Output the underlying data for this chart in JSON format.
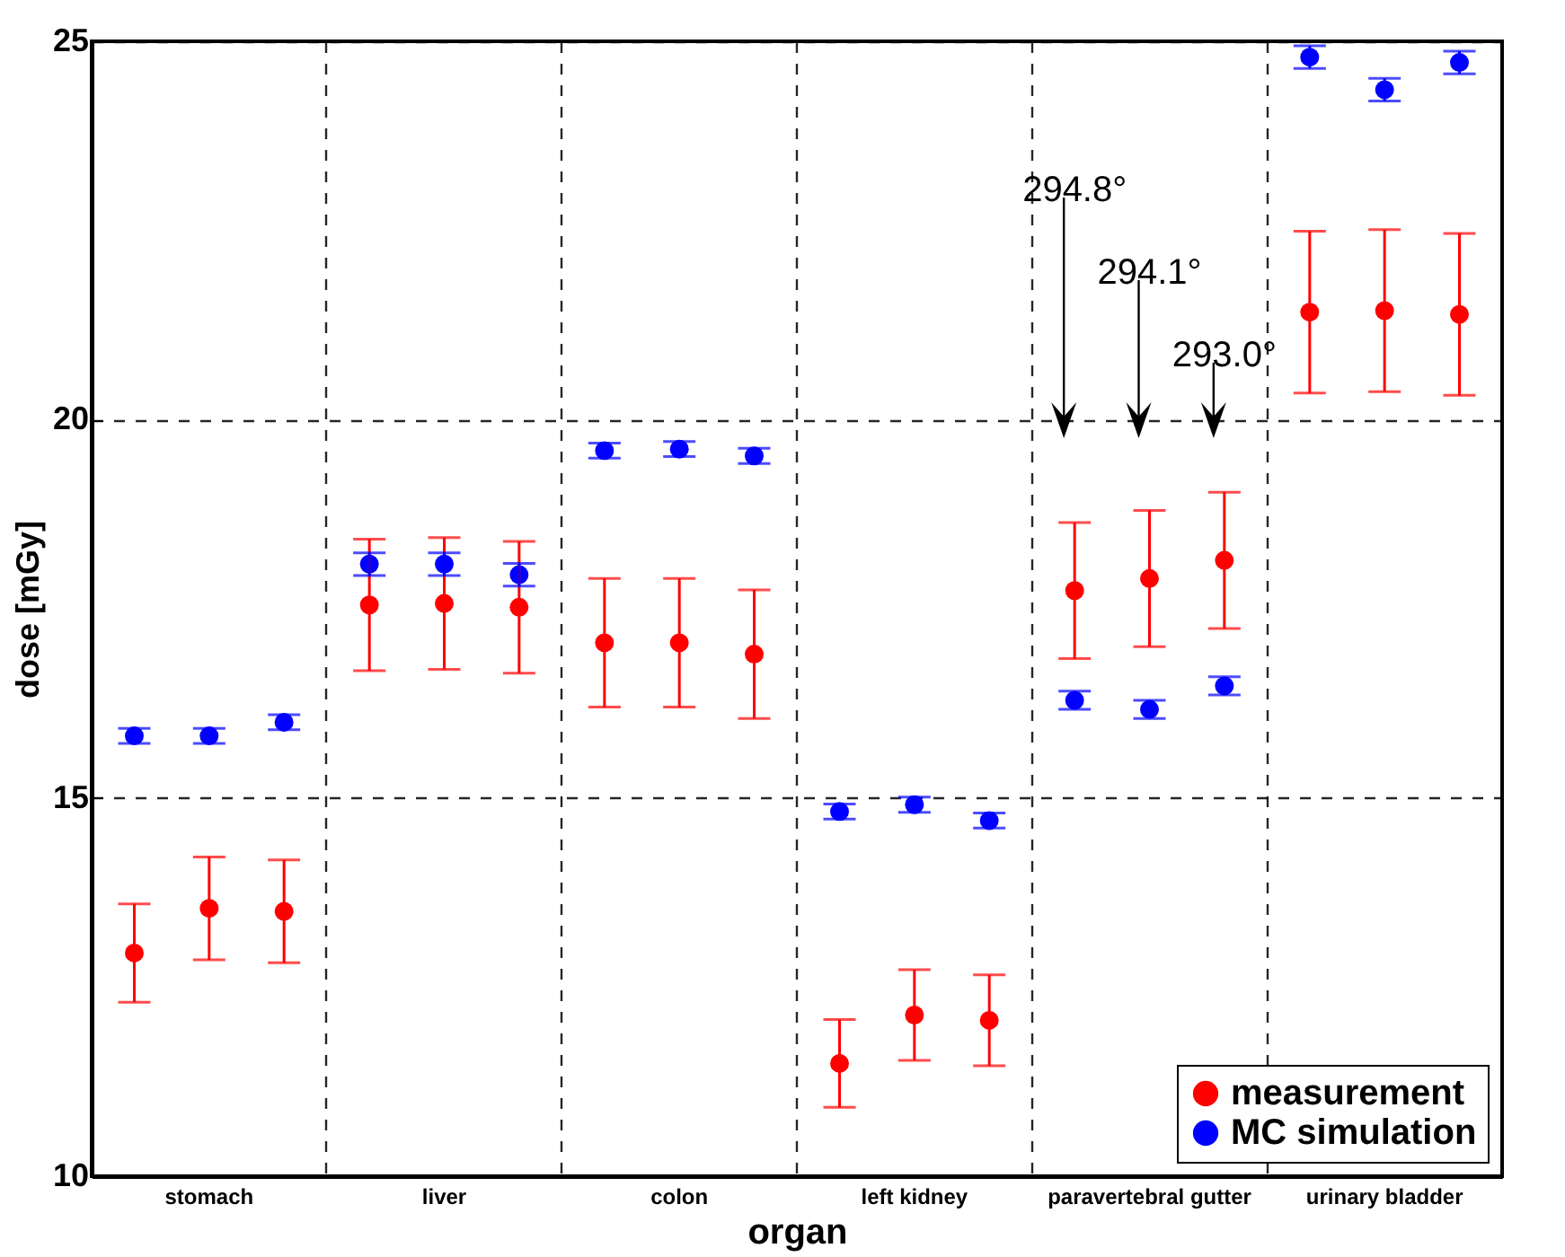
{
  "chart_data": {
    "type": "scatter",
    "xlabel": "organ",
    "ylabel": "dose [mGy]",
    "categories": [
      "stomach",
      "liver",
      "colon",
      "left kidney",
      "paravertebral gutter",
      "urinary bladder"
    ],
    "ylim": [
      10,
      25
    ],
    "yticks": [
      10,
      15,
      20,
      25
    ],
    "grid": true,
    "marker": "circle",
    "legend": "bottom right",
    "series": [
      {
        "name": "measurement",
        "color": "#ff0000",
        "values": [
          12.95,
          17.55,
          17.05,
          11.49,
          17.74,
          21.42
        ],
        "errors": [
          0.65,
          0.87,
          0.85,
          0.58,
          0.9,
          1.07
        ]
      },
      {
        "color": "#ff0000",
        "values": [
          13.54,
          17.57,
          17.05,
          12.13,
          17.9,
          21.44
        ],
        "errors": [
          0.68,
          0.87,
          0.85,
          0.6,
          0.9,
          1.07
        ]
      },
      {
        "color": "#ff0000",
        "values": [
          13.5,
          17.52,
          16.9,
          12.06,
          18.14,
          21.39
        ],
        "errors": [
          0.68,
          0.87,
          0.85,
          0.6,
          0.9,
          1.07
        ]
      },
      {
        "name": "MC simulation",
        "color": "#0000ff",
        "values": [
          15.82,
          18.09,
          19.59,
          14.82,
          16.29,
          24.79
        ],
        "errors": [
          0.1,
          0.15,
          0.1,
          0.1,
          0.12,
          0.15
        ]
      },
      {
        "color": "#0000ff",
        "values": [
          15.82,
          18.09,
          19.61,
          14.91,
          16.17,
          24.36
        ],
        "errors": [
          0.1,
          0.15,
          0.1,
          0.1,
          0.12,
          0.15
        ]
      },
      {
        "color": "#0000ff",
        "values": [
          16.0,
          17.95,
          19.52,
          14.7,
          16.48,
          24.72
        ],
        "errors": [
          0.1,
          0.15,
          0.1,
          0.1,
          0.12,
          0.15
        ]
      }
    ],
    "annotations": [
      "294.8°",
      "294.1°",
      "293.0°"
    ]
  }
}
